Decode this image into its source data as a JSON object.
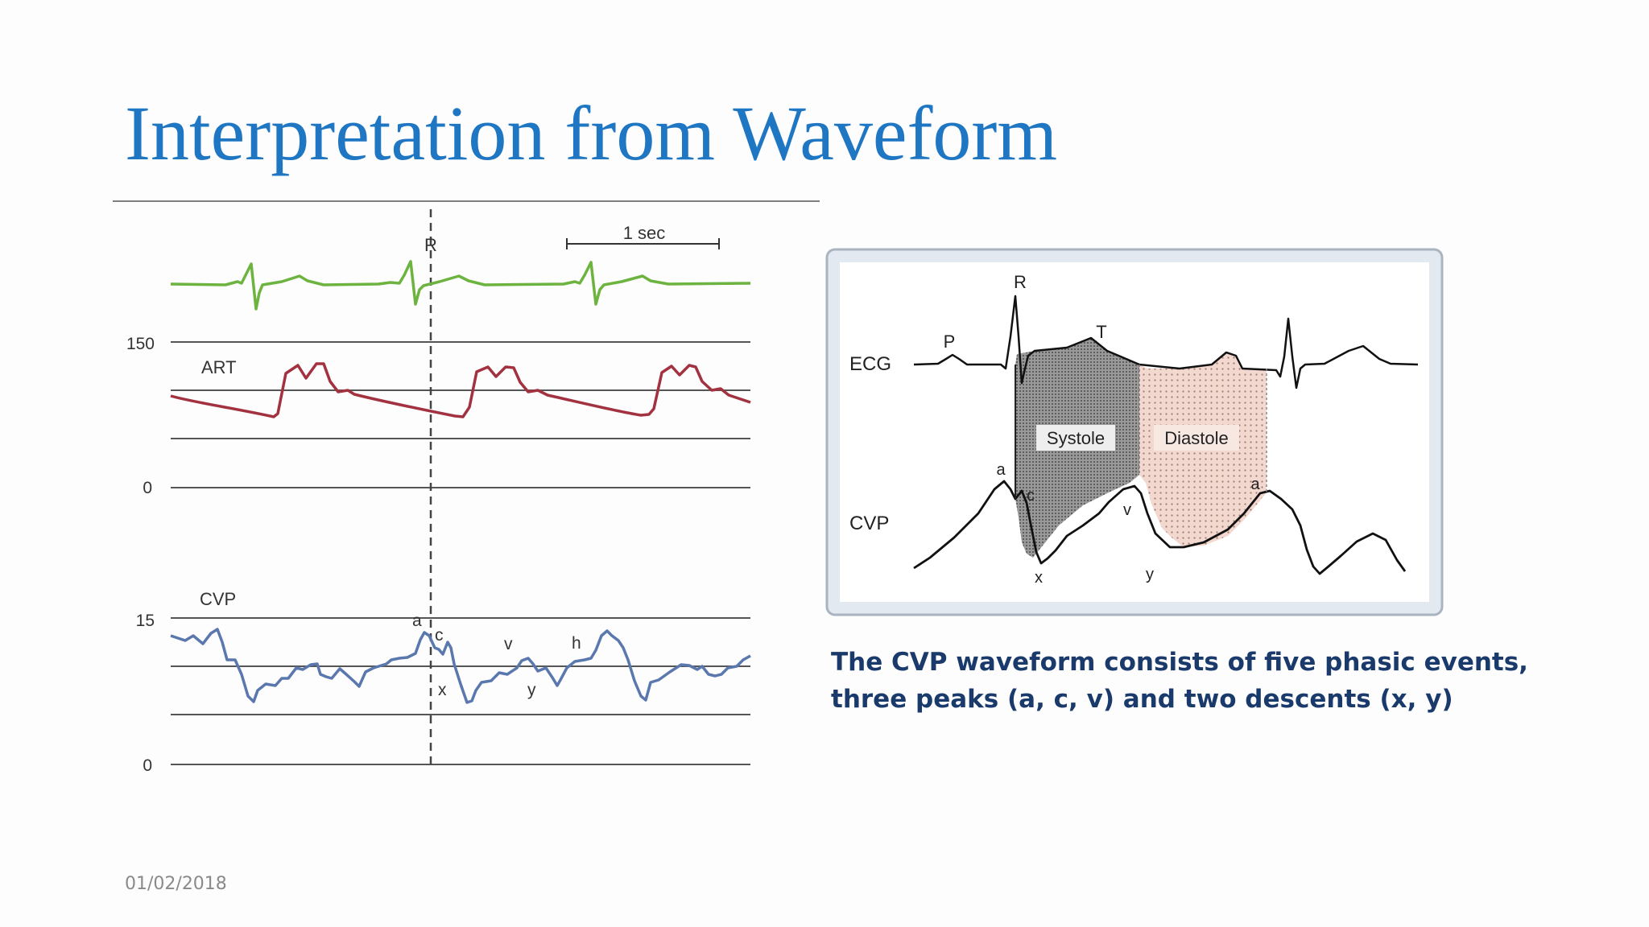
{
  "slide": {
    "title": "Interpretation from Waveform",
    "date": "01/02/2018",
    "caption_line1": "The CVP waveform consists of five phasic events,",
    "caption_line2": "three peaks (a, c, v) and two descents (x, y)"
  },
  "left_figure": {
    "r_label": "R",
    "scale_label": "1 sec",
    "art_label": "ART",
    "art_top_tick": "150",
    "art_zero_tick": "0",
    "cvp_label": "CVP",
    "cvp_top_tick": "15",
    "cvp_zero_tick": "0",
    "wave_labels": {
      "a": "a",
      "c": "c",
      "v": "v",
      "h": "h",
      "x": "x",
      "y": "y"
    },
    "colors": {
      "ecg": "#6db33f",
      "art": "#a33240",
      "cvp": "#5a78ad"
    }
  },
  "right_figure": {
    "ecg_label": "ECG",
    "cvp_label": "CVP",
    "p_label": "P",
    "r_label": "R",
    "t_label": "T",
    "systole_label": "Systole",
    "diastole_label": "Diastole",
    "wave_labels": {
      "a1": "a",
      "c": "c",
      "v": "v",
      "a2": "a",
      "x": "x",
      "y": "y"
    },
    "colors": {
      "systole_fill": "#8e8e8e",
      "diastole_fill": "#f3d8cf",
      "frame": "#aab4c0"
    }
  },
  "colors": {
    "title": "#1f76c2",
    "caption": "#1a3a6b"
  }
}
